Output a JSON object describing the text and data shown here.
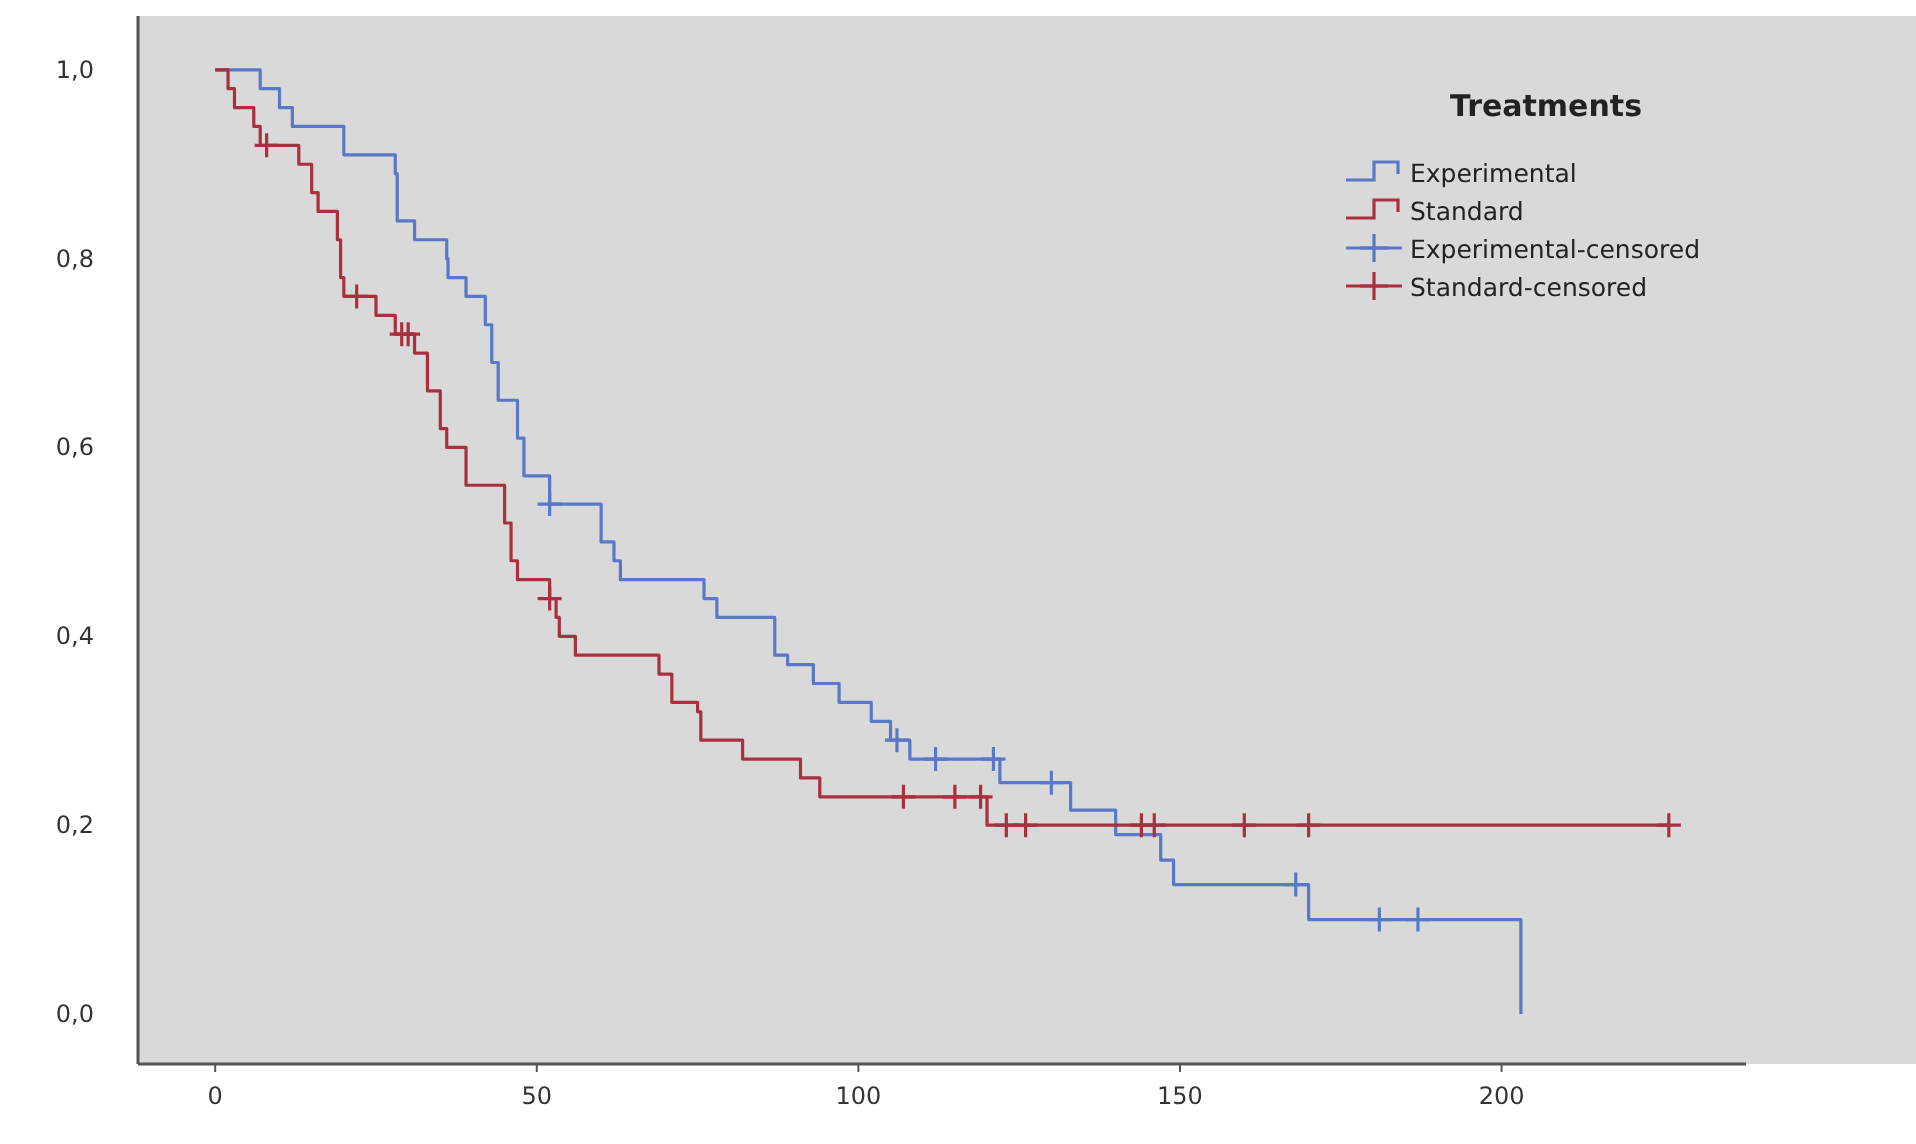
{
  "chart_data": {
    "type": "step",
    "legend_title": "Treatments",
    "legend": "top right",
    "grid": false,
    "xlim": [
      -12,
      238
    ],
    "xticks": [
      0,
      50,
      100,
      150,
      200
    ],
    "ylim": [
      -0.053,
      1.057
    ],
    "yticks": [
      {
        "value": 0,
        "label": "0,0"
      },
      {
        "value": 0.2,
        "label": "0,2"
      },
      {
        "value": 0.4,
        "label": "0,4"
      },
      {
        "value": 0.6,
        "label": "0,6"
      },
      {
        "value": 0.8,
        "label": "0,8"
      },
      {
        "value": 1,
        "label": "1,0"
      }
    ],
    "series": [
      {
        "name": "Experimental",
        "color": "#5a78c8",
        "x": [
          0,
          7,
          10,
          12,
          20,
          28,
          28.3,
          31,
          36,
          36.2,
          39,
          42,
          43,
          44,
          47,
          48,
          52,
          60,
          62,
          63,
          76,
          78,
          87,
          89,
          93,
          97,
          102,
          105,
          108,
          122,
          133,
          140,
          147,
          149,
          170,
          203
        ],
        "values": [
          1,
          0.98,
          0.96,
          0.94,
          0.91,
          0.89,
          0.84,
          0.82,
          0.8,
          0.78,
          0.76,
          0.73,
          0.69,
          0.65,
          0.61,
          0.57,
          0.54,
          0.5,
          0.48,
          0.46,
          0.44,
          0.42,
          0.38,
          0.37,
          0.35,
          0.33,
          0.31,
          0.29,
          0.27,
          0.245,
          0.216,
          0.19,
          0.163,
          0.137,
          0.1,
          0
        ]
      },
      {
        "name": "Standard",
        "color": "#a8303f",
        "x": [
          0,
          2,
          3,
          6,
          7,
          13,
          15,
          16,
          19,
          19.5,
          20,
          25,
          28,
          31,
          33,
          35,
          36,
          39,
          45,
          46,
          47,
          52,
          53,
          53.5,
          56,
          69,
          71,
          75,
          75.5,
          82,
          91,
          94,
          120,
          226
        ],
        "values": [
          1,
          0.98,
          0.96,
          0.94,
          0.92,
          0.9,
          0.87,
          0.85,
          0.82,
          0.78,
          0.76,
          0.74,
          0.72,
          0.7,
          0.66,
          0.62,
          0.6,
          0.56,
          0.52,
          0.48,
          0.46,
          0.44,
          0.42,
          0.4,
          0.38,
          0.36,
          0.33,
          0.32,
          0.29,
          0.27,
          0.25,
          0.23,
          0.2,
          0.2
        ]
      },
      {
        "name": "Experimental-censored",
        "type": "scatter",
        "marker": "cross",
        "color": "#5a78c8",
        "x": [
          52,
          106,
          112,
          121,
          130,
          168,
          181,
          187
        ],
        "values": [
          0.54,
          0.29,
          0.27,
          0.27,
          0.245,
          0.137,
          0.1,
          0.1
        ]
      },
      {
        "name": "Standard-censored",
        "type": "scatter",
        "marker": "cross",
        "color": "#a8303f",
        "x": [
          8,
          22,
          29,
          30,
          52,
          107,
          115,
          119,
          123,
          126,
          144,
          146,
          160,
          170,
          226
        ],
        "values": [
          0.92,
          0.76,
          0.72,
          0.72,
          0.44,
          0.23,
          0.23,
          0.23,
          0.2,
          0.2,
          0.2,
          0.2,
          0.2,
          0.2,
          0.2
        ]
      }
    ]
  }
}
